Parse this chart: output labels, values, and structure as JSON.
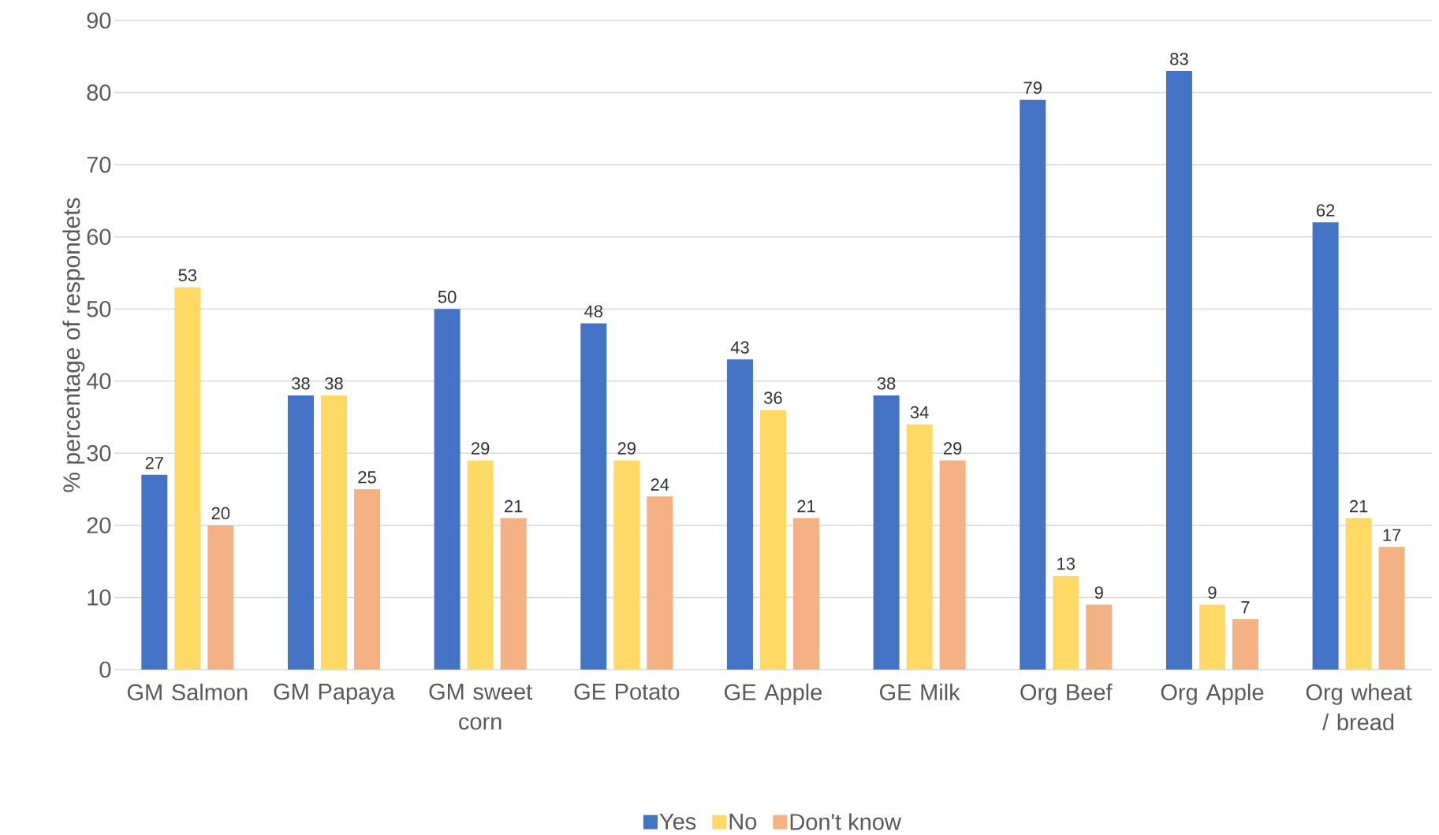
{
  "chart_data": {
    "type": "bar",
    "ylabel": "% percentage of respondets",
    "categories": [
      "GM Salmon",
      "GM Papaya",
      "GM sweet corn",
      "GE Potato",
      "GE Apple",
      "GE Milk",
      "Org Beef",
      "Org Apple",
      "Org wheat / bread"
    ],
    "series": [
      {
        "name": "Yes",
        "color": "#4472c4",
        "values": [
          27,
          38,
          50,
          48,
          43,
          38,
          79,
          83,
          62
        ]
      },
      {
        "name": "No",
        "color": "#ffd966",
        "values": [
          53,
          38,
          29,
          29,
          36,
          34,
          13,
          9,
          21
        ]
      },
      {
        "name": "Don't know",
        "color": "#f4b183",
        "values": [
          20,
          25,
          21,
          24,
          21,
          29,
          9,
          7,
          17
        ]
      }
    ],
    "ylim": [
      0,
      90
    ],
    "yticks": [
      0,
      10,
      20,
      30,
      40,
      50,
      60,
      70,
      80,
      90
    ],
    "grid": "y",
    "legend": "bottom",
    "data_labels": true
  }
}
